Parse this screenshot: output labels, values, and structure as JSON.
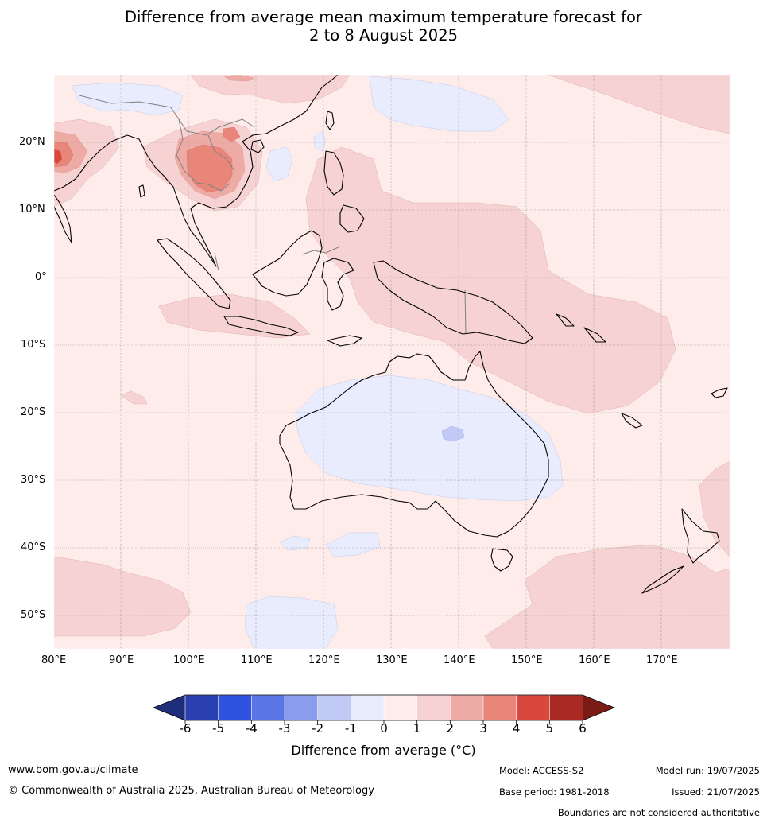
{
  "title": {
    "line1": "Difference from average mean maximum temperature forecast for",
    "line2": "2 to 8 August 2025"
  },
  "map": {
    "lon_labels": [
      "80°E",
      "90°E",
      "100°E",
      "110°E",
      "120°E",
      "130°E",
      "140°E",
      "150°E",
      "160°E",
      "170°E"
    ],
    "lat_labels": [
      "20°N",
      "10°N",
      "0°",
      "10°S",
      "20°S",
      "30°S",
      "40°S",
      "50°S"
    ],
    "extent": {
      "lon": [
        80,
        180
      ],
      "lat": [
        -55,
        30
      ]
    }
  },
  "legend": {
    "ticks": [
      "-6",
      "-5",
      "-4",
      "-3",
      "-2",
      "-1",
      "0",
      "1",
      "2",
      "3",
      "4",
      "5",
      "6"
    ],
    "colors": [
      "#2a3fb0",
      "#2f52e0",
      "#5a75e6",
      "#8a9ded",
      "#c1c9f5",
      "#e8ecfc",
      "#fdecea",
      "#f6d3d2",
      "#eeaaa5",
      "#e88679",
      "#d9483c",
      "#a82a22"
    ],
    "low_color": "#1f2e7a",
    "high_color": "#7a1b16",
    "label": "Difference from average (°C)"
  },
  "footer": {
    "website": "www.bom.gov.au/climate",
    "copyright": "© Commonwealth of Australia 2025, Australian Bureau of Meteorology",
    "model": "Model: ACCESS-S2",
    "base_period": "Base period: 1981-2018",
    "model_run": "Model run: 19/07/2025",
    "issued": "Issued: 21/07/2025",
    "disclaimer": "Boundaries are not considered authoritative"
  }
}
